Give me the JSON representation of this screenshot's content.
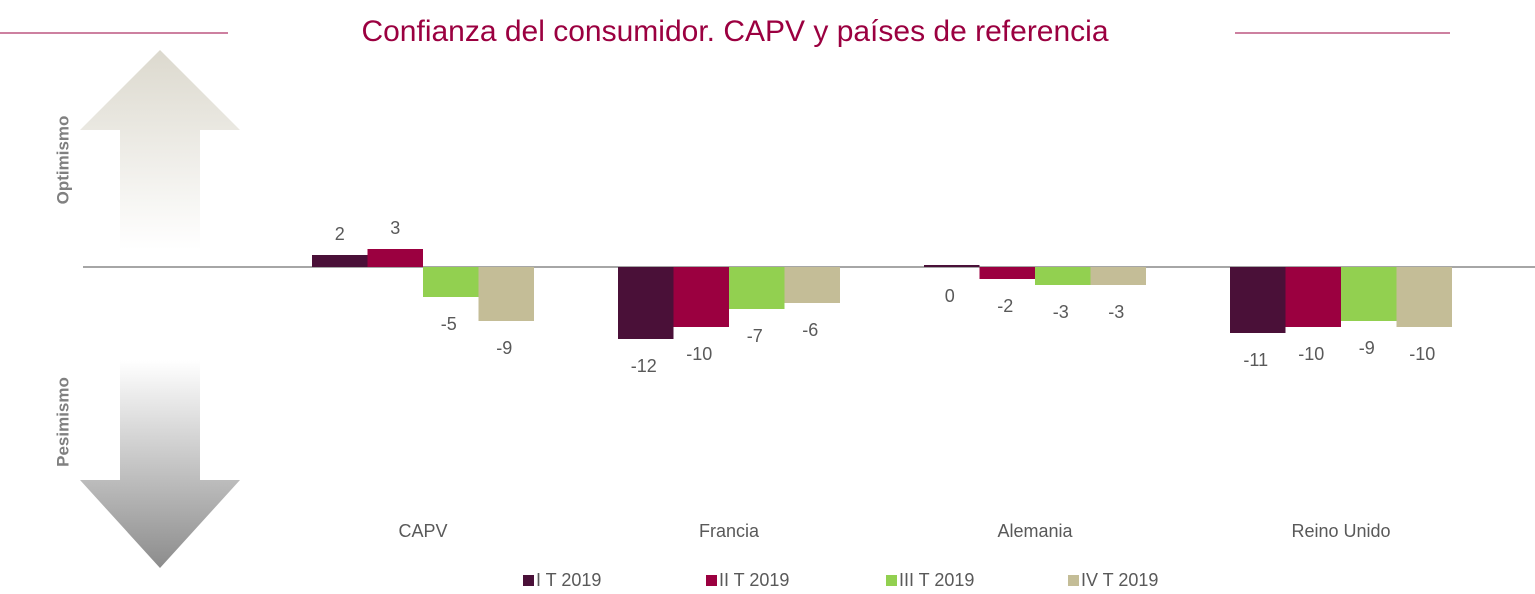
{
  "chart_data": {
    "type": "bar",
    "title": "Confianza del consumidor. CAPV y países de referencia",
    "annotations": [
      "Optimismo",
      "Pesimismo"
    ],
    "categories": [
      "CAPV",
      "Francia",
      "Alemania",
      "Reino Unido"
    ],
    "series": [
      {
        "name": "I T 2019",
        "color": "#4a1038",
        "values": [
          2,
          -12,
          0,
          -11
        ]
      },
      {
        "name": "II T 2019",
        "color": "#9b0040",
        "values": [
          3,
          -10,
          -2,
          -10
        ]
      },
      {
        "name": "III T 2019",
        "color": "#92d050",
        "values": [
          -5,
          -7,
          -3,
          -9
        ]
      },
      {
        "name": "IV T 2019",
        "color": "#c4bd97",
        "values": [
          -9,
          -6,
          -3,
          -10
        ]
      }
    ],
    "legend": "bottom"
  }
}
